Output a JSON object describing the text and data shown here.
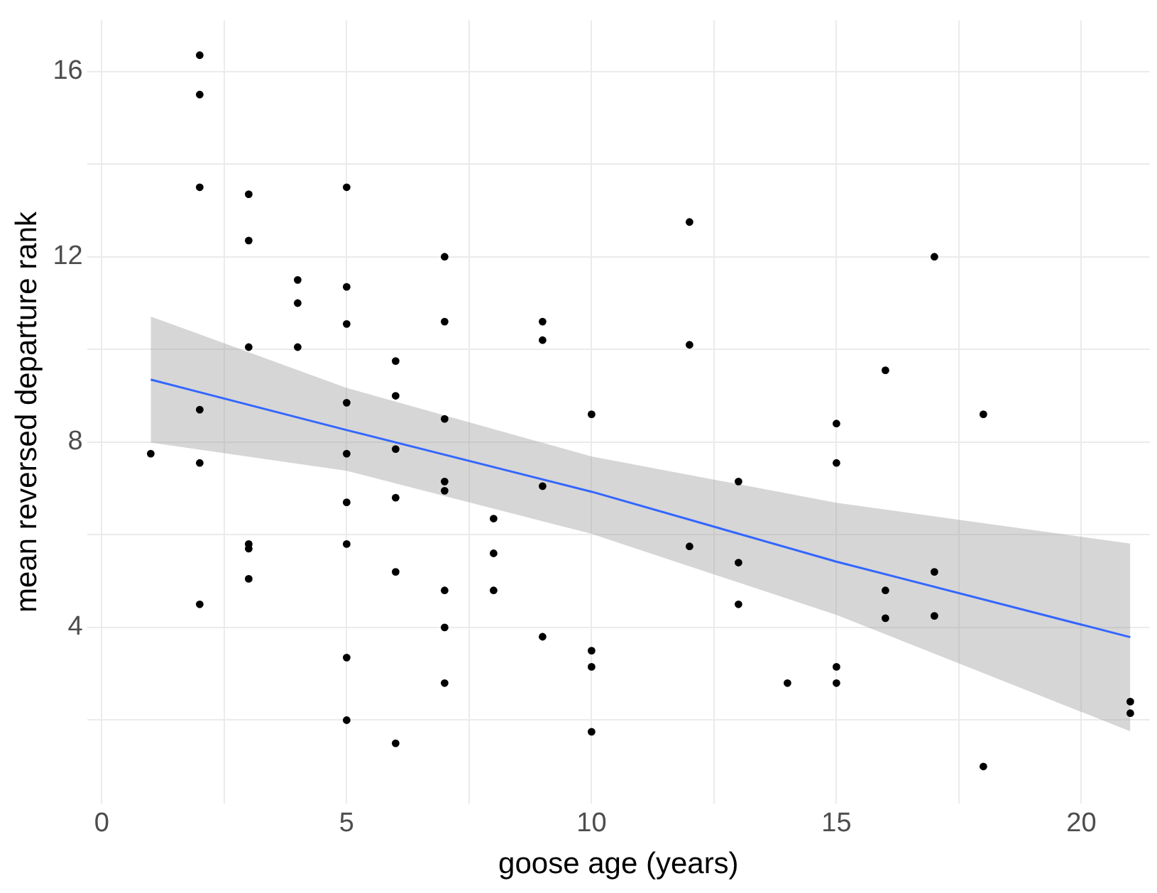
{
  "chart_data": {
    "type": "scatter",
    "xlabel": "goose age (years)",
    "ylabel": "mean reversed departure rank",
    "xlim": [
      -0.3,
      21.4
    ],
    "ylim": [
      0.2,
      17.1
    ],
    "xticks": [
      0,
      {
        "value": 2.5,
        "label": null
      },
      5,
      {
        "value": 7.5,
        "label": null
      },
      10,
      {
        "value": 12.5,
        "label": null
      },
      15,
      {
        "value": 17.5,
        "label": null
      },
      20
    ],
    "yticks": [
      {
        "value": 2,
        "label": null
      },
      4,
      {
        "value": 6,
        "label": null
      },
      8,
      {
        "value": 10,
        "label": null
      },
      12,
      {
        "value": 14,
        "label": null
      },
      16
    ],
    "grid": true,
    "legend": false,
    "series": [
      {
        "color": "#000000",
        "marker": "circle",
        "x": [
          1,
          2,
          2,
          2,
          2,
          2,
          2,
          3,
          3,
          3,
          3,
          3,
          3,
          4,
          4,
          4,
          5,
          5,
          5,
          5,
          5,
          5,
          5,
          5,
          5,
          6,
          6,
          6,
          6,
          6,
          6,
          7,
          7,
          7,
          7,
          7,
          7,
          7,
          7,
          8,
          8,
          8,
          9,
          9,
          9,
          9,
          10,
          10,
          10,
          10,
          12,
          12,
          12,
          13,
          13,
          13,
          14,
          15,
          15,
          15,
          15,
          16,
          16,
          16,
          17,
          17,
          17,
          18,
          18,
          21,
          21
        ],
        "values": [
          7.75,
          16.35,
          15.5,
          13.5,
          8.7,
          7.55,
          4.5,
          13.35,
          12.35,
          10.05,
          5.8,
          5.7,
          5.05,
          11.5,
          11.0,
          10.05,
          13.5,
          11.35,
          10.55,
          8.85,
          7.75,
          6.7,
          5.8,
          3.35,
          2.0,
          9.75,
          9.0,
          7.85,
          6.8,
          5.2,
          1.5,
          12.0,
          10.6,
          8.5,
          7.15,
          6.95,
          4.8,
          4.0,
          2.8,
          6.35,
          5.6,
          4.8,
          10.6,
          10.2,
          7.05,
          3.8,
          8.6,
          3.5,
          3.15,
          1.75,
          12.75,
          10.1,
          5.75,
          7.15,
          5.4,
          4.5,
          2.8,
          8.4,
          7.55,
          3.15,
          2.8,
          9.55,
          4.8,
          4.2,
          12.0,
          5.2,
          4.25,
          8.6,
          1.0,
          2.4,
          2.15
        ]
      },
      {
        "type": "line",
        "color": "#3366ff",
        "marker": "none",
        "x": [
          1,
          5,
          10,
          15,
          21
        ],
        "values": [
          9.35,
          8.26,
          6.93,
          5.42,
          3.79
        ],
        "lower": [
          7.99,
          7.38,
          6.02,
          4.27,
          1.76
        ],
        "upper": [
          10.71,
          9.17,
          7.69,
          6.69,
          5.81
        ]
      }
    ]
  }
}
